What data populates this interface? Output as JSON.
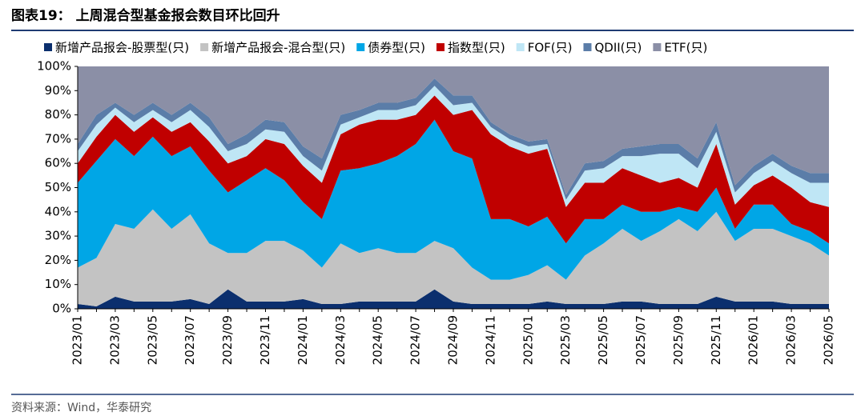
{
  "chart_data": {
    "type": "stacked-area",
    "title": "图表19： 上周混合型基金报会数目环比回升",
    "source": "资料来源：Wind，华泰研究",
    "categories": [
      "2023/01",
      null,
      "2023/03",
      null,
      "2023/05",
      null,
      "2023/07",
      null,
      "2023/09",
      null,
      "2023/11",
      null,
      "2024/01",
      null,
      "2024/03",
      null,
      "2024/05",
      null,
      "2024/07",
      null,
      "2024/09",
      null,
      "2024/11",
      null,
      "2025/01",
      null,
      "2025/03",
      null,
      "2025/05",
      null,
      "2025/07",
      null,
      "2025/09",
      null,
      "2025/11",
      null,
      "2026/01",
      null,
      "2026/03",
      null,
      "2026/05"
    ],
    "ylim": [
      0,
      100
    ],
    "yticks": [
      {
        "value": 0,
        "label": "0%"
      },
      {
        "value": 10,
        "label": "10%"
      },
      {
        "value": 20,
        "label": "20%"
      },
      {
        "value": 30,
        "label": "30%"
      },
      {
        "value": 40,
        "label": "40%"
      },
      {
        "value": 50,
        "label": "50%"
      },
      {
        "value": 60,
        "label": "60%"
      },
      {
        "value": 70,
        "label": "70%"
      },
      {
        "value": 80,
        "label": "80%"
      },
      {
        "value": 90,
        "label": "90%"
      },
      {
        "value": 100,
        "label": "100%"
      }
    ],
    "series": [
      {
        "name": "新增产品报会-股票型(只)",
        "color": "#0b2f6e",
        "values": [
          2,
          1,
          5,
          3,
          3,
          3,
          4,
          2,
          8,
          3,
          3,
          3,
          4,
          2,
          2,
          3,
          3,
          3,
          3,
          8,
          3,
          2,
          2,
          2,
          2,
          3,
          2,
          2,
          2,
          3,
          3,
          2,
          2,
          2,
          5,
          3,
          3,
          3,
          2,
          2,
          2
        ]
      },
      {
        "name": "新增产品报会-混合型(只)",
        "color": "#c3c3c3",
        "values": [
          15,
          20,
          30,
          30,
          38,
          30,
          35,
          25,
          15,
          20,
          25,
          25,
          20,
          15,
          25,
          20,
          22,
          20,
          20,
          20,
          22,
          15,
          10,
          10,
          12,
          15,
          10,
          20,
          25,
          30,
          25,
          30,
          35,
          30,
          35,
          25,
          30,
          30,
          28,
          25,
          20
        ]
      },
      {
        "name": "债券型(只)",
        "color": "#00a6e6",
        "values": [
          35,
          40,
          35,
          30,
          30,
          30,
          28,
          30,
          25,
          30,
          30,
          25,
          20,
          20,
          30,
          35,
          35,
          40,
          45,
          50,
          40,
          45,
          25,
          25,
          20,
          20,
          15,
          15,
          10,
          10,
          12,
          8,
          5,
          8,
          10,
          5,
          10,
          10,
          5,
          5,
          5
        ]
      },
      {
        "name": "指数型(只)",
        "color": "#c00000",
        "values": [
          8,
          10,
          10,
          10,
          8,
          10,
          10,
          12,
          12,
          10,
          12,
          15,
          15,
          15,
          15,
          18,
          18,
          15,
          12,
          10,
          15,
          20,
          35,
          30,
          30,
          28,
          15,
          15,
          15,
          15,
          15,
          12,
          12,
          10,
          18,
          10,
          8,
          12,
          15,
          12,
          15
        ]
      },
      {
        "name": "FOF(只)",
        "color": "#bfe6f5",
        "values": [
          5,
          5,
          3,
          4,
          3,
          4,
          5,
          6,
          5,
          5,
          4,
          5,
          4,
          5,
          4,
          3,
          4,
          4,
          4,
          4,
          4,
          3,
          3,
          3,
          3,
          2,
          3,
          5,
          6,
          5,
          8,
          12,
          10,
          8,
          5,
          5,
          5,
          6,
          6,
          8,
          10
        ]
      },
      {
        "name": "QDII(只)",
        "color": "#5b7da8",
        "values": [
          3,
          4,
          2,
          3,
          3,
          3,
          3,
          4,
          3,
          4,
          4,
          4,
          4,
          5,
          4,
          3,
          3,
          3,
          3,
          3,
          4,
          3,
          2,
          2,
          2,
          2,
          2,
          3,
          3,
          3,
          4,
          4,
          4,
          4,
          4,
          3,
          3,
          3,
          3,
          4,
          4
        ]
      },
      {
        "name": "ETF(只)",
        "color": "#8b8fa6",
        "values": [
          32,
          20,
          15,
          20,
          15,
          20,
          15,
          21,
          32,
          28,
          22,
          23,
          33,
          38,
          20,
          18,
          15,
          15,
          13,
          5,
          12,
          12,
          23,
          28,
          31,
          30,
          53,
          40,
          39,
          34,
          33,
          32,
          32,
          38,
          23,
          49,
          41,
          36,
          41,
          44,
          44
        ]
      }
    ]
  }
}
